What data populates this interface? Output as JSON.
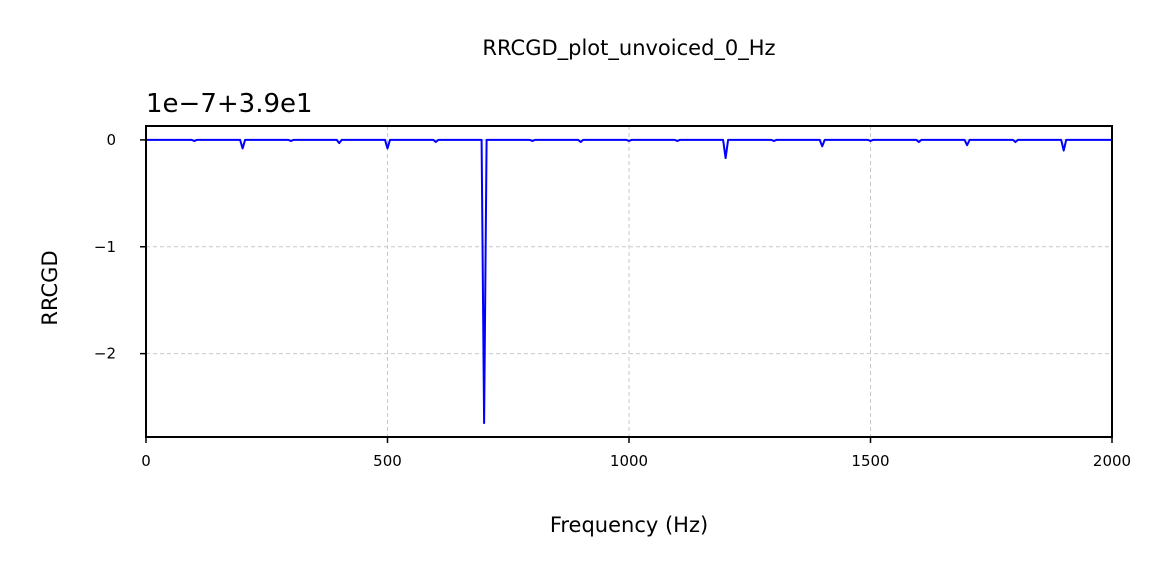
{
  "chart_data": {
    "type": "line",
    "title": "RRCGD_plot_unvoiced_0_Hz",
    "offset_text": "1e−7+3.9e1",
    "xlabel": "Frequency (Hz)",
    "ylabel": "RRCGD",
    "xlim": [
      0,
      2000
    ],
    "ylim": [
      -2.78,
      0.13
    ],
    "xticks": [
      0,
      500,
      1000,
      1500,
      2000
    ],
    "xtick_labels": [
      "0",
      "500",
      "1000",
      "1500",
      "2000"
    ],
    "yticks": [
      0,
      -1,
      -2
    ],
    "ytick_labels": [
      "0",
      "−1",
      "−2"
    ],
    "grid": true,
    "line_color": "#0000ff",
    "series": [
      {
        "baseline": 0,
        "dips": [
          {
            "x": 100,
            "y": -0.01
          },
          {
            "x": 200,
            "y": -0.08
          },
          {
            "x": 300,
            "y": -0.01
          },
          {
            "x": 400,
            "y": -0.03
          },
          {
            "x": 500,
            "y": -0.08
          },
          {
            "x": 600,
            "y": -0.02
          },
          {
            "x": 700,
            "y": -2.65
          },
          {
            "x": 800,
            "y": -0.01
          },
          {
            "x": 900,
            "y": -0.02
          },
          {
            "x": 1000,
            "y": -0.01
          },
          {
            "x": 1100,
            "y": -0.01
          },
          {
            "x": 1200,
            "y": -0.17
          },
          {
            "x": 1300,
            "y": -0.01
          },
          {
            "x": 1400,
            "y": -0.06
          },
          {
            "x": 1500,
            "y": -0.01
          },
          {
            "x": 1600,
            "y": -0.02
          },
          {
            "x": 1700,
            "y": -0.05
          },
          {
            "x": 1800,
            "y": -0.02
          },
          {
            "x": 1900,
            "y": -0.1
          }
        ]
      }
    ]
  }
}
